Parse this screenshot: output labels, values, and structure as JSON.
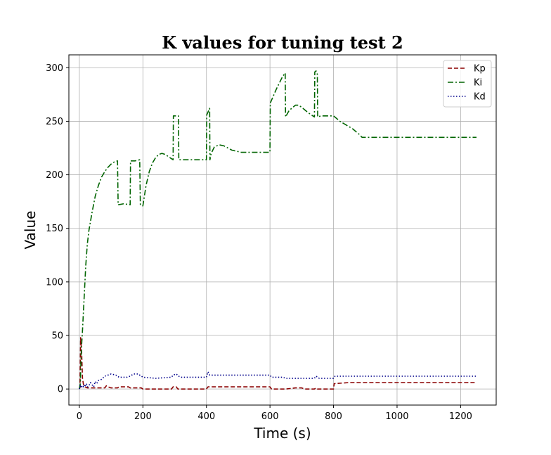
{
  "chart_data": {
    "type": "line",
    "title": "K values for tuning test 2",
    "xlabel": "Time (s)",
    "ylabel": "Value",
    "xlim": [
      -33,
      1312
    ],
    "ylim": [
      -15,
      312
    ],
    "x_ticks": [
      0,
      200,
      400,
      600,
      800,
      1000,
      1200
    ],
    "y_ticks": [
      0,
      50,
      100,
      150,
      200,
      250,
      300
    ],
    "grid": true,
    "legend_position": "top-right",
    "series": [
      {
        "name": "Kp",
        "color": "#8b0000",
        "style": "dashed",
        "points": [
          [
            0,
            2
          ],
          [
            2,
            1
          ],
          [
            4,
            48
          ],
          [
            7,
            35
          ],
          [
            10,
            10
          ],
          [
            13,
            4
          ],
          [
            18,
            2
          ],
          [
            25,
            1
          ],
          [
            40,
            1
          ],
          [
            60,
            1
          ],
          [
            80,
            1
          ],
          [
            85,
            3
          ],
          [
            90,
            2
          ],
          [
            100,
            1
          ],
          [
            120,
            1
          ],
          [
            125,
            2
          ],
          [
            155,
            2
          ],
          [
            160,
            1
          ],
          [
            195,
            1
          ],
          [
            200,
            0
          ],
          [
            290,
            0
          ],
          [
            295,
            2
          ],
          [
            305,
            2
          ],
          [
            310,
            0
          ],
          [
            400,
            0
          ],
          [
            405,
            2
          ],
          [
            500,
            2
          ],
          [
            600,
            2
          ],
          [
            605,
            0
          ],
          [
            650,
            0
          ],
          [
            680,
            1
          ],
          [
            700,
            1
          ],
          [
            710,
            0
          ],
          [
            740,
            0
          ],
          [
            745,
            1
          ],
          [
            750,
            0
          ],
          [
            800,
            0
          ],
          [
            802,
            5
          ],
          [
            850,
            6
          ],
          [
            1000,
            6
          ],
          [
            1250,
            6
          ]
        ]
      },
      {
        "name": "Ki",
        "color": "#006400",
        "style": "dashdot",
        "points": [
          [
            0,
            0
          ],
          [
            3,
            5
          ],
          [
            6,
            35
          ],
          [
            10,
            55
          ],
          [
            15,
            85
          ],
          [
            20,
            115
          ],
          [
            25,
            135
          ],
          [
            30,
            148
          ],
          [
            40,
            165
          ],
          [
            50,
            180
          ],
          [
            60,
            190
          ],
          [
            70,
            198
          ],
          [
            80,
            203
          ],
          [
            90,
            207
          ],
          [
            100,
            210
          ],
          [
            110,
            212
          ],
          [
            120,
            213
          ],
          [
            122,
            172
          ],
          [
            140,
            173
          ],
          [
            160,
            172
          ],
          [
            161,
            213
          ],
          [
            175,
            213
          ],
          [
            190,
            214
          ],
          [
            192,
            172
          ],
          [
            200,
            171
          ],
          [
            210,
            190
          ],
          [
            220,
            203
          ],
          [
            230,
            211
          ],
          [
            240,
            216
          ],
          [
            250,
            219
          ],
          [
            260,
            220
          ],
          [
            270,
            219
          ],
          [
            285,
            216
          ],
          [
            295,
            214
          ],
          [
            296,
            255
          ],
          [
            305,
            255
          ],
          [
            312,
            255
          ],
          [
            313,
            214
          ],
          [
            350,
            214
          ],
          [
            400,
            214
          ],
          [
            401,
            256
          ],
          [
            410,
            262
          ],
          [
            411,
            214
          ],
          [
            415,
            220
          ],
          [
            425,
            226
          ],
          [
            440,
            228
          ],
          [
            455,
            227
          ],
          [
            480,
            223
          ],
          [
            510,
            221
          ],
          [
            550,
            221
          ],
          [
            600,
            221
          ],
          [
            601,
            267
          ],
          [
            620,
            280
          ],
          [
            640,
            292
          ],
          [
            648,
            295
          ],
          [
            649,
            254
          ],
          [
            660,
            260
          ],
          [
            680,
            265
          ],
          [
            690,
            265
          ],
          [
            700,
            263
          ],
          [
            720,
            258
          ],
          [
            740,
            254
          ],
          [
            741,
            296
          ],
          [
            745,
            297
          ],
          [
            749,
            294
          ],
          [
            750,
            254
          ],
          [
            760,
            255
          ],
          [
            800,
            255
          ],
          [
            820,
            250
          ],
          [
            860,
            243
          ],
          [
            880,
            238
          ],
          [
            890,
            235
          ],
          [
            950,
            235
          ],
          [
            1000,
            235
          ],
          [
            1100,
            235
          ],
          [
            1250,
            235
          ]
        ]
      },
      {
        "name": "Kd",
        "color": "#00008b",
        "style": "dotted",
        "points": [
          [
            0,
            0
          ],
          [
            3,
            4
          ],
          [
            6,
            1
          ],
          [
            9,
            3
          ],
          [
            12,
            2
          ],
          [
            15,
            4
          ],
          [
            18,
            2
          ],
          [
            22,
            5
          ],
          [
            26,
            2
          ],
          [
            30,
            3
          ],
          [
            35,
            6
          ],
          [
            40,
            4
          ],
          [
            45,
            2
          ],
          [
            50,
            7
          ],
          [
            55,
            5
          ],
          [
            60,
            8
          ],
          [
            70,
            9
          ],
          [
            80,
            12
          ],
          [
            90,
            13
          ],
          [
            100,
            14
          ],
          [
            115,
            13
          ],
          [
            120,
            12
          ],
          [
            125,
            11
          ],
          [
            150,
            11
          ],
          [
            160,
            12
          ],
          [
            170,
            14
          ],
          [
            185,
            14
          ],
          [
            195,
            12
          ],
          [
            200,
            11
          ],
          [
            240,
            10
          ],
          [
            290,
            11
          ],
          [
            295,
            13
          ],
          [
            305,
            14
          ],
          [
            312,
            12
          ],
          [
            320,
            11
          ],
          [
            400,
            11
          ],
          [
            405,
            16
          ],
          [
            410,
            13
          ],
          [
            500,
            13
          ],
          [
            600,
            13
          ],
          [
            605,
            11
          ],
          [
            640,
            11
          ],
          [
            650,
            10
          ],
          [
            700,
            10
          ],
          [
            740,
            10
          ],
          [
            745,
            12
          ],
          [
            755,
            10
          ],
          [
            800,
            10
          ],
          [
            805,
            12
          ],
          [
            900,
            12
          ],
          [
            1000,
            12
          ],
          [
            1250,
            12
          ]
        ]
      }
    ]
  }
}
